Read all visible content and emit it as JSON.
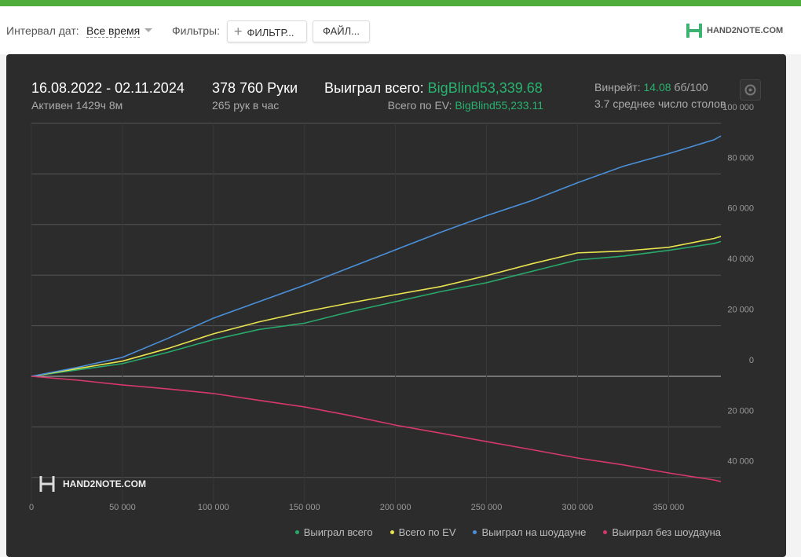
{
  "toolbar": {
    "date_label": "Интервал дат:",
    "date_value": "Все время",
    "filters_label": "Фильтры:",
    "filter_button": "ФИЛЬТР...",
    "file_button": "ФАЙЛ...",
    "logo": "HAND2NOTE.COM"
  },
  "summary": {
    "period": "16.08.2022 - 02.11.2024",
    "active": "Активен 1429ч 8м",
    "hands": "378 760 Руки",
    "hands_per_hour": "265 рук в час",
    "won_label": "Выиграл всего:",
    "won_value": "BigBlind53,339.68",
    "ev_label": "Всего по EV:",
    "ev_value": "BigBlind55,233.11",
    "winrate_label": "Винрейт:",
    "winrate_value": "14.08",
    "winrate_unit": "бб/100",
    "tables": "3.7 среднее число столов"
  },
  "watermark": "HAND2NOTE.COM",
  "chart_data": {
    "type": "line",
    "x": [
      0,
      25000,
      50000,
      75000,
      100000,
      125000,
      150000,
      175000,
      200000,
      225000,
      250000,
      275000,
      300000,
      325000,
      350000,
      375000,
      378760
    ],
    "series": [
      {
        "name": "Выиграл всего",
        "color": "#27a96b",
        "values": [
          0,
          2500,
          5000,
          9500,
          14500,
          18500,
          21000,
          25500,
          29500,
          33500,
          37000,
          41500,
          46000,
          47500,
          49800,
          52500,
          53300
        ]
      },
      {
        "name": "Всего по EV",
        "color": "#e8e34f",
        "values": [
          0,
          3000,
          6000,
          11000,
          16800,
          21500,
          25500,
          29000,
          32300,
          35500,
          39800,
          44500,
          48800,
          49500,
          51000,
          54500,
          55300
        ]
      },
      {
        "name": "Выиграл на шоудауне",
        "color": "#4a90d9",
        "values": [
          0,
          3500,
          7500,
          15000,
          23000,
          29500,
          36000,
          43000,
          50000,
          57000,
          63500,
          69500,
          76500,
          83000,
          88000,
          93500,
          95000
        ]
      },
      {
        "name": "Выиграл без шоудауна",
        "color": "#d6386a",
        "values": [
          0,
          -1500,
          -3400,
          -5000,
          -6800,
          -9500,
          -12100,
          -15500,
          -19300,
          -22500,
          -25800,
          -29000,
          -32300,
          -35000,
          -38200,
          -41000,
          -41600
        ]
      }
    ],
    "xlim": [
      0,
      378760
    ],
    "xticks": [
      0,
      {
        "value": 50000,
        "label": "50 000"
      },
      {
        "value": 100000,
        "label": "100 000"
      },
      {
        "value": 150000,
        "label": "150 000"
      },
      {
        "value": 200000,
        "label": "200 000"
      },
      {
        "value": 250000,
        "label": "250 000"
      },
      {
        "value": 300000,
        "label": "300 000"
      },
      {
        "value": 350000,
        "label": "350 000"
      }
    ],
    "ylim": [
      -50000,
      100000
    ],
    "yticks": [
      {
        "value": -40000,
        "label": "40 000"
      },
      {
        "value": -20000,
        "label": "20 000"
      },
      0,
      {
        "value": 20000,
        "label": "20 000"
      },
      {
        "value": 40000,
        "label": "40 000"
      },
      {
        "value": 60000,
        "label": "60 000"
      },
      {
        "value": 80000,
        "label": "80 000"
      },
      {
        "value": 100000,
        "label": "100 000"
      }
    ],
    "grid": true
  }
}
